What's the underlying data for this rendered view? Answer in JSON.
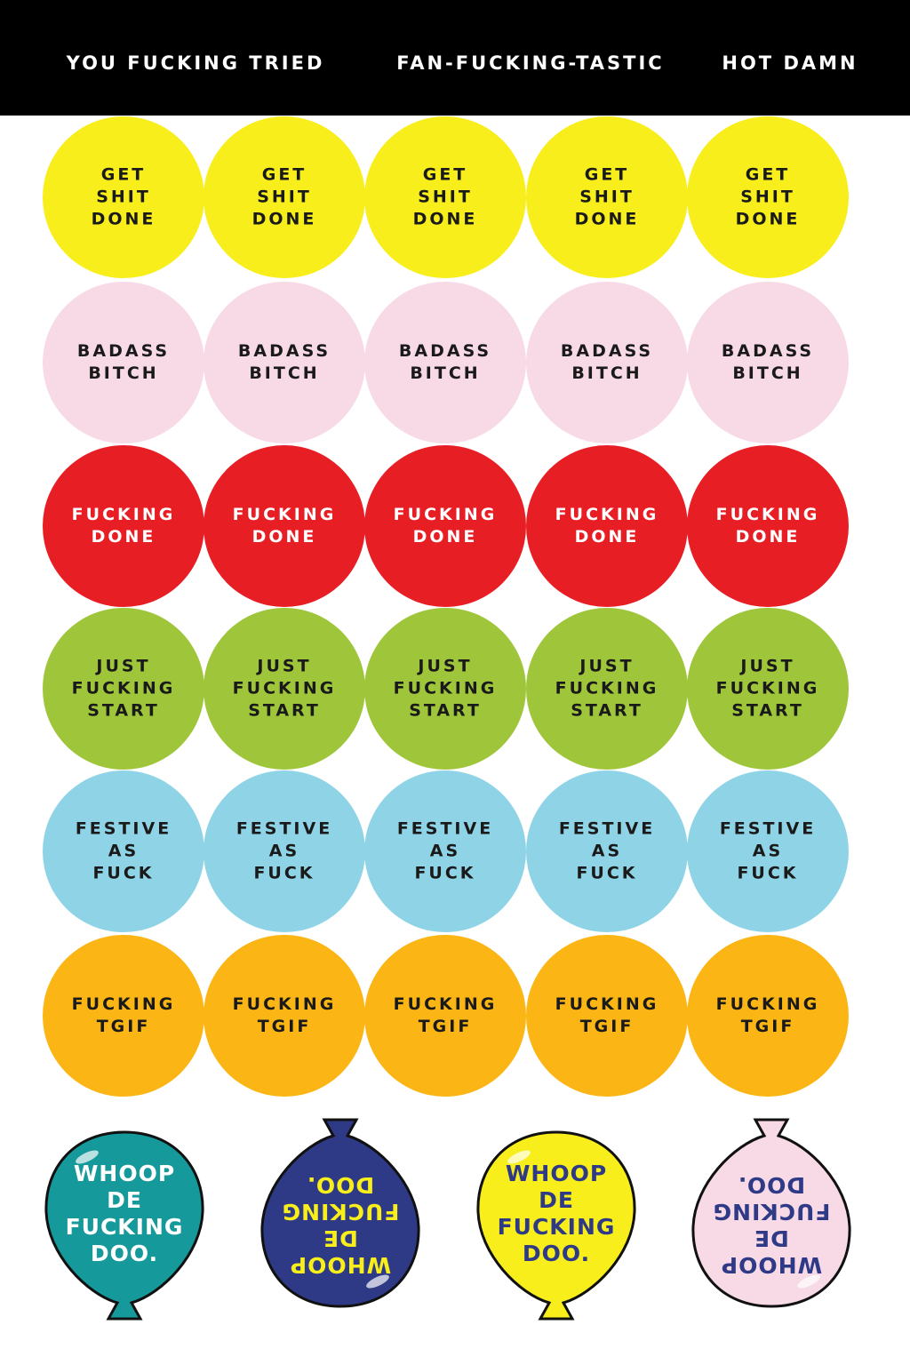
{
  "header": {
    "labels": [
      "YOU FUCKING TRIED",
      "FAN-FUCKING-TASTIC",
      "HOT DAMN"
    ]
  },
  "rows": [
    {
      "color": "#f7ee1b",
      "text_color": "#1a1a1a",
      "stickers": [
        [
          "GET",
          "SHIT",
          "DONE"
        ],
        [
          "GET",
          "SHIT",
          "DONE"
        ],
        [
          "GET",
          "SHIT",
          "DONE"
        ],
        [
          "GET",
          "SHIT",
          "DONE"
        ],
        [
          "GET",
          "SHIT",
          "DONE"
        ]
      ]
    },
    {
      "color": "#f8d9e6",
      "text_color": "#1a1a1a",
      "stickers": [
        [
          "BADASS",
          "BITCH"
        ],
        [
          "BADASS",
          "BITCH"
        ],
        [
          "BADASS",
          "BITCH"
        ],
        [
          "BADASS",
          "BITCH"
        ],
        [
          "BADASS",
          "BITCH"
        ]
      ]
    },
    {
      "color": "#e81e25",
      "text_color": "#ffffff",
      "stickers": [
        [
          "FUCKING",
          "DONE"
        ],
        [
          "FUCKING",
          "DONE"
        ],
        [
          "FUCKING",
          "DONE"
        ],
        [
          "FUCKING",
          "DONE"
        ],
        [
          "FUCKING",
          "DONE"
        ]
      ]
    },
    {
      "color": "#9fc63b",
      "text_color": "#1a1a1a",
      "stickers": [
        [
          "JUST",
          "FUCKING",
          "START"
        ],
        [
          "JUST",
          "FUCKING",
          "START"
        ],
        [
          "JUST",
          "FUCKING",
          "START"
        ],
        [
          "JUST",
          "FUCKING",
          "START"
        ],
        [
          "JUST",
          "FUCKING",
          "START"
        ]
      ]
    },
    {
      "color": "#8fd4e6",
      "text_color": "#1a1a1a",
      "stickers": [
        [
          "FESTIVE",
          "AS",
          "FUCK"
        ],
        [
          "FESTIVE",
          "AS",
          "FUCK"
        ],
        [
          "FESTIVE",
          "AS",
          "FUCK"
        ],
        [
          "FESTIVE",
          "AS",
          "FUCK"
        ],
        [
          "FESTIVE",
          "AS",
          "FUCK"
        ]
      ]
    },
    {
      "color": "#fbb514",
      "text_color": "#1a1a1a",
      "stickers": [
        [
          "FUCKING",
          "TGIF"
        ],
        [
          "FUCKING",
          "TGIF"
        ],
        [
          "FUCKING",
          "TGIF"
        ],
        [
          "FUCKING",
          "TGIF"
        ],
        [
          "FUCKING",
          "TGIF"
        ]
      ]
    }
  ],
  "balloons": [
    {
      "color": "#16999a",
      "text_color": "#ffffff",
      "flipped": false,
      "lines": [
        "WHOOP",
        "DE",
        "FUCKING",
        "DOO."
      ]
    },
    {
      "color": "#2f3a86",
      "text_color": "#f7ee1b",
      "flipped": true,
      "lines": [
        "WHOOP",
        "DE",
        "FUCKING",
        "DOO."
      ]
    },
    {
      "color": "#f7ee1b",
      "text_color": "#2f3a86",
      "flipped": false,
      "lines": [
        "WHOOP",
        "DE",
        "FUCKING",
        "DOO."
      ]
    },
    {
      "color": "#f8d9e6",
      "text_color": "#2f3a86",
      "flipped": true,
      "lines": [
        "WHOOP",
        "DE",
        "FUCKING",
        "DOO."
      ]
    }
  ]
}
